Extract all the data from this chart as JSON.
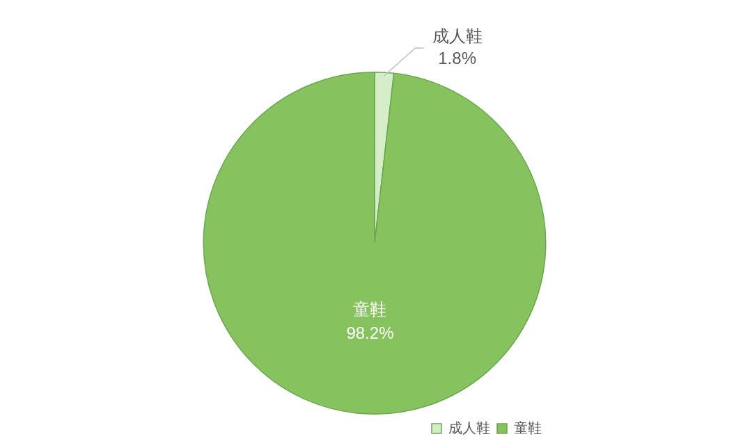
{
  "chart_data": {
    "type": "pie",
    "categories": [
      "成人鞋",
      "童鞋"
    ],
    "values": [
      1.8,
      98.2
    ],
    "colors": [
      "#d6edc9",
      "#86c25e"
    ],
    "value_labels": [
      "1.8%",
      "98.2%"
    ],
    "legend": "bottom right"
  }
}
